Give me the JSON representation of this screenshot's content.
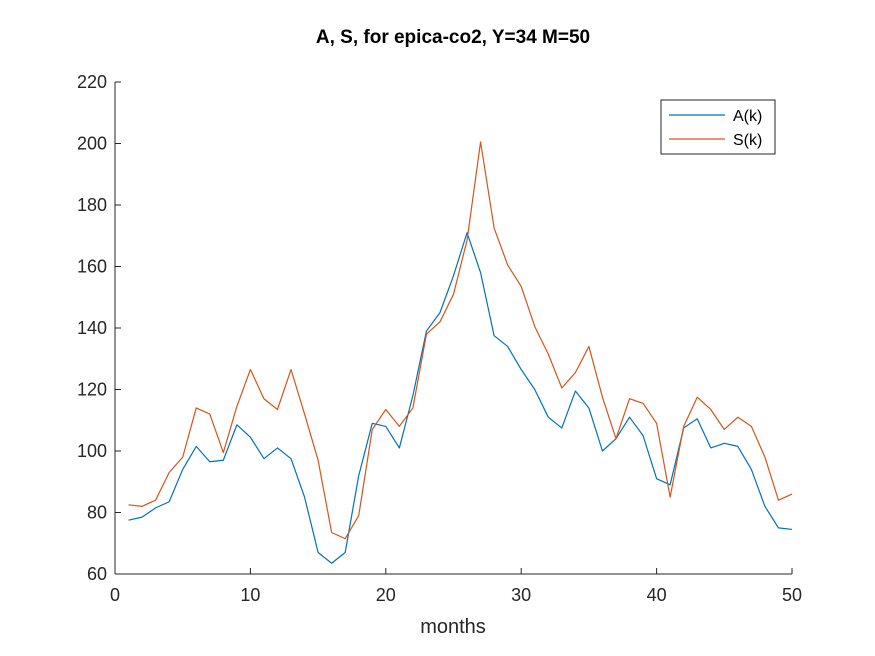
{
  "chart_data": {
    "type": "line",
    "title": "A, S, for epica-co2, Y=34 M=50",
    "xlabel": "months",
    "ylabel": "",
    "xlim": [
      0,
      50
    ],
    "ylim": [
      60,
      220
    ],
    "xticks": [
      0,
      10,
      20,
      30,
      40,
      50
    ],
    "yticks": [
      60,
      80,
      100,
      120,
      140,
      160,
      180,
      200,
      220
    ],
    "grid": false,
    "legend_position": "top-right",
    "x": [
      1,
      2,
      3,
      4,
      5,
      6,
      7,
      8,
      9,
      10,
      11,
      12,
      13,
      14,
      15,
      16,
      17,
      18,
      19,
      20,
      21,
      22,
      23,
      24,
      25,
      26,
      27,
      28,
      29,
      30,
      31,
      32,
      33,
      34,
      35,
      36,
      37,
      38,
      39,
      40,
      41,
      42,
      43,
      44,
      45,
      46,
      47,
      48,
      49,
      50
    ],
    "series": [
      {
        "name": "A(k)",
        "color": "#0072BD",
        "values": [
          77.5,
          78.5,
          81.5,
          83.5,
          94,
          101.5,
          96.5,
          97,
          108.5,
          104.5,
          97.5,
          101,
          97.5,
          85,
          67,
          63.5,
          67,
          92,
          109,
          108,
          101,
          118,
          139,
          145,
          157,
          171,
          158,
          137.5,
          134,
          126.5,
          120,
          111,
          107.5,
          119.5,
          114,
          100,
          104,
          111,
          105,
          91,
          89,
          107.5,
          110.5,
          101,
          102.5,
          101.5,
          94,
          82,
          75,
          74.5
        ]
      },
      {
        "name": "S(k)",
        "color": "#D95319",
        "values": [
          82.5,
          82,
          84,
          93,
          98,
          114,
          112,
          99.5,
          114.5,
          126.5,
          117,
          113.5,
          126.5,
          112,
          97,
          73.5,
          71.5,
          79,
          107,
          113.5,
          108,
          114,
          138,
          142,
          151,
          168.5,
          200.5,
          172.5,
          160.5,
          153.5,
          140.5,
          131.5,
          120.5,
          125.5,
          134,
          117.5,
          104,
          117,
          115.5,
          109,
          85,
          108,
          117.5,
          113.5,
          107,
          111,
          108,
          98,
          84,
          86
        ]
      }
    ]
  }
}
